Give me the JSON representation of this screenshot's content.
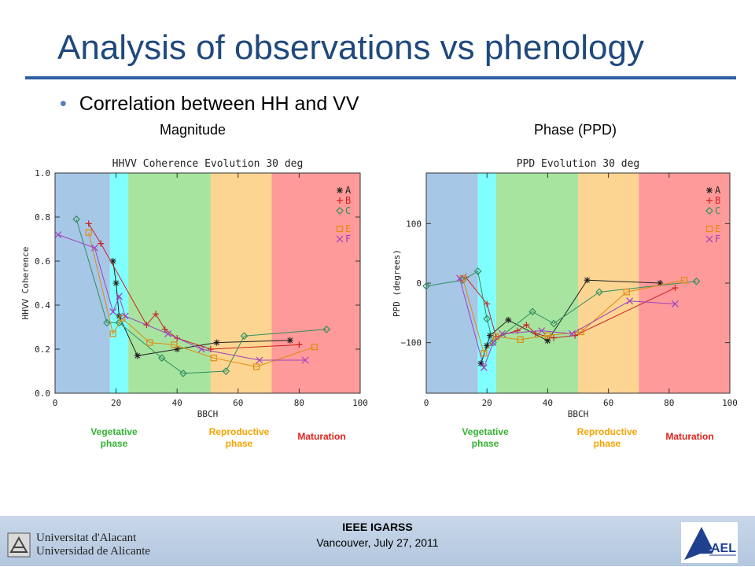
{
  "slide": {
    "title": "Analysis of observations vs phenology",
    "bullet": "Correlation between HH and VV",
    "caption_left": "Magnitude",
    "caption_right": "Phase (PPD)"
  },
  "phase_labels": {
    "vegetative": "Vegetative phase",
    "reproductive": "Reproductive phase",
    "maturation": "Maturation"
  },
  "footer": {
    "line1": "IEEE IGARSS",
    "line2": "Vancouver, July 27, 2011",
    "university_line1": "Universitat d'Alacant",
    "university_line2": "Universidad de Alicante",
    "company_logo": "AEL"
  },
  "colors": {
    "title": "#1f497d",
    "vegetative": "#33b233",
    "reproductive": "#f5a200",
    "maturation": "#e2211a"
  },
  "chart_data": [
    {
      "type": "line",
      "title": "HHVV Coherence Evolution 30 deg",
      "xlabel": "BBCH",
      "ylabel": "HHVV Coherence",
      "xlim": [
        0,
        100
      ],
      "ylim": [
        0,
        1
      ],
      "xticks": [
        0,
        20,
        40,
        60,
        80,
        100
      ],
      "yticks": [
        0.0,
        0.2,
        0.4,
        0.6,
        0.8,
        1.0
      ],
      "grid": false,
      "legend_position": "top-right",
      "phase_bands": [
        {
          "from": 0,
          "to": 18,
          "color": "#a7c7e7"
        },
        {
          "from": 18,
          "to": 24,
          "color": "#80ffff"
        },
        {
          "from": 24,
          "to": 51,
          "color": "#a7e4a0"
        },
        {
          "from": 51,
          "to": 71,
          "color": "#fdd592"
        },
        {
          "from": 71,
          "to": 100,
          "color": "#ff9a9a"
        }
      ],
      "series": [
        {
          "name": "A",
          "marker": "*",
          "color": "#222222",
          "x": [
            19,
            20,
            21,
            27,
            40,
            53,
            77
          ],
          "y": [
            0.6,
            0.5,
            0.35,
            0.17,
            0.2,
            0.23,
            0.24
          ]
        },
        {
          "name": "B",
          "marker": "+",
          "color": "#cc2222",
          "x": [
            11,
            15,
            30,
            33,
            36,
            40,
            51,
            80
          ],
          "y": [
            0.77,
            0.68,
            0.31,
            0.36,
            0.29,
            0.25,
            0.2,
            0.22
          ]
        },
        {
          "name": "C",
          "marker": "diamond",
          "color": "#2f8f5f",
          "x": [
            7,
            17,
            21,
            35,
            42,
            56,
            62,
            89
          ],
          "y": [
            0.79,
            0.32,
            0.32,
            0.16,
            0.09,
            0.1,
            0.26,
            0.29
          ]
        },
        {
          "name": "E",
          "marker": "square",
          "color": "#e08a10",
          "x": [
            11,
            19,
            22,
            31,
            39,
            52,
            66,
            85
          ],
          "y": [
            0.73,
            0.27,
            0.34,
            0.23,
            0.22,
            0.16,
            0.12,
            0.21
          ]
        },
        {
          "name": "F",
          "marker": "x",
          "color": "#a040c0",
          "x": [
            1,
            13,
            19,
            21,
            23,
            37,
            48,
            67,
            82
          ],
          "y": [
            0.72,
            0.66,
            0.37,
            0.44,
            0.35,
            0.27,
            0.2,
            0.15,
            0.15
          ]
        }
      ]
    },
    {
      "type": "line",
      "title": "PPD Evolution 30 deg",
      "xlabel": "BBCH",
      "ylabel": "PPD (degrees)",
      "xlim": [
        0,
        100
      ],
      "ylim": [
        -185,
        185
      ],
      "xticks": [
        0,
        20,
        40,
        60,
        80,
        100
      ],
      "yticks": [
        -100,
        0,
        100
      ],
      "grid": false,
      "legend_position": "top-right",
      "phase_bands": [
        {
          "from": 0,
          "to": 17,
          "color": "#a7c7e7"
        },
        {
          "from": 17,
          "to": 23,
          "color": "#80ffff"
        },
        {
          "from": 23,
          "to": 50,
          "color": "#a7e4a0"
        },
        {
          "from": 50,
          "to": 70,
          "color": "#fdd592"
        },
        {
          "from": 70,
          "to": 100,
          "color": "#ff9a9a"
        }
      ],
      "series": [
        {
          "name": "A",
          "marker": "*",
          "color": "#222222",
          "x": [
            18,
            20,
            21,
            27,
            40,
            53,
            77
          ],
          "y": [
            -135,
            -105,
            -88,
            -62,
            -97,
            5,
            0
          ]
        },
        {
          "name": "B",
          "marker": "+",
          "color": "#cc2222",
          "x": [
            13,
            20,
            23,
            30,
            33,
            36,
            42,
            49,
            82
          ],
          "y": [
            10,
            -35,
            -90,
            -80,
            -70,
            -85,
            -92,
            -88,
            -8
          ]
        },
        {
          "name": "C",
          "marker": "diamond",
          "color": "#2f8f5f",
          "x": [
            0,
            12,
            17,
            20,
            22,
            35,
            42,
            57,
            89
          ],
          "y": [
            -5,
            5,
            20,
            -60,
            -100,
            -48,
            -68,
            -15,
            3
          ]
        },
        {
          "name": "E",
          "marker": "square",
          "color": "#e08a10",
          "x": [
            12,
            19,
            23,
            31,
            40,
            51,
            66,
            85
          ],
          "y": [
            8,
            -118,
            -90,
            -95,
            -88,
            -82,
            -15,
            5
          ]
        },
        {
          "name": "F",
          "marker": "x",
          "color": "#a040c0",
          "x": [
            11,
            19,
            22,
            25,
            38,
            48,
            67,
            82
          ],
          "y": [
            8,
            -142,
            -100,
            -85,
            -80,
            -85,
            -30,
            -35
          ]
        }
      ]
    }
  ]
}
